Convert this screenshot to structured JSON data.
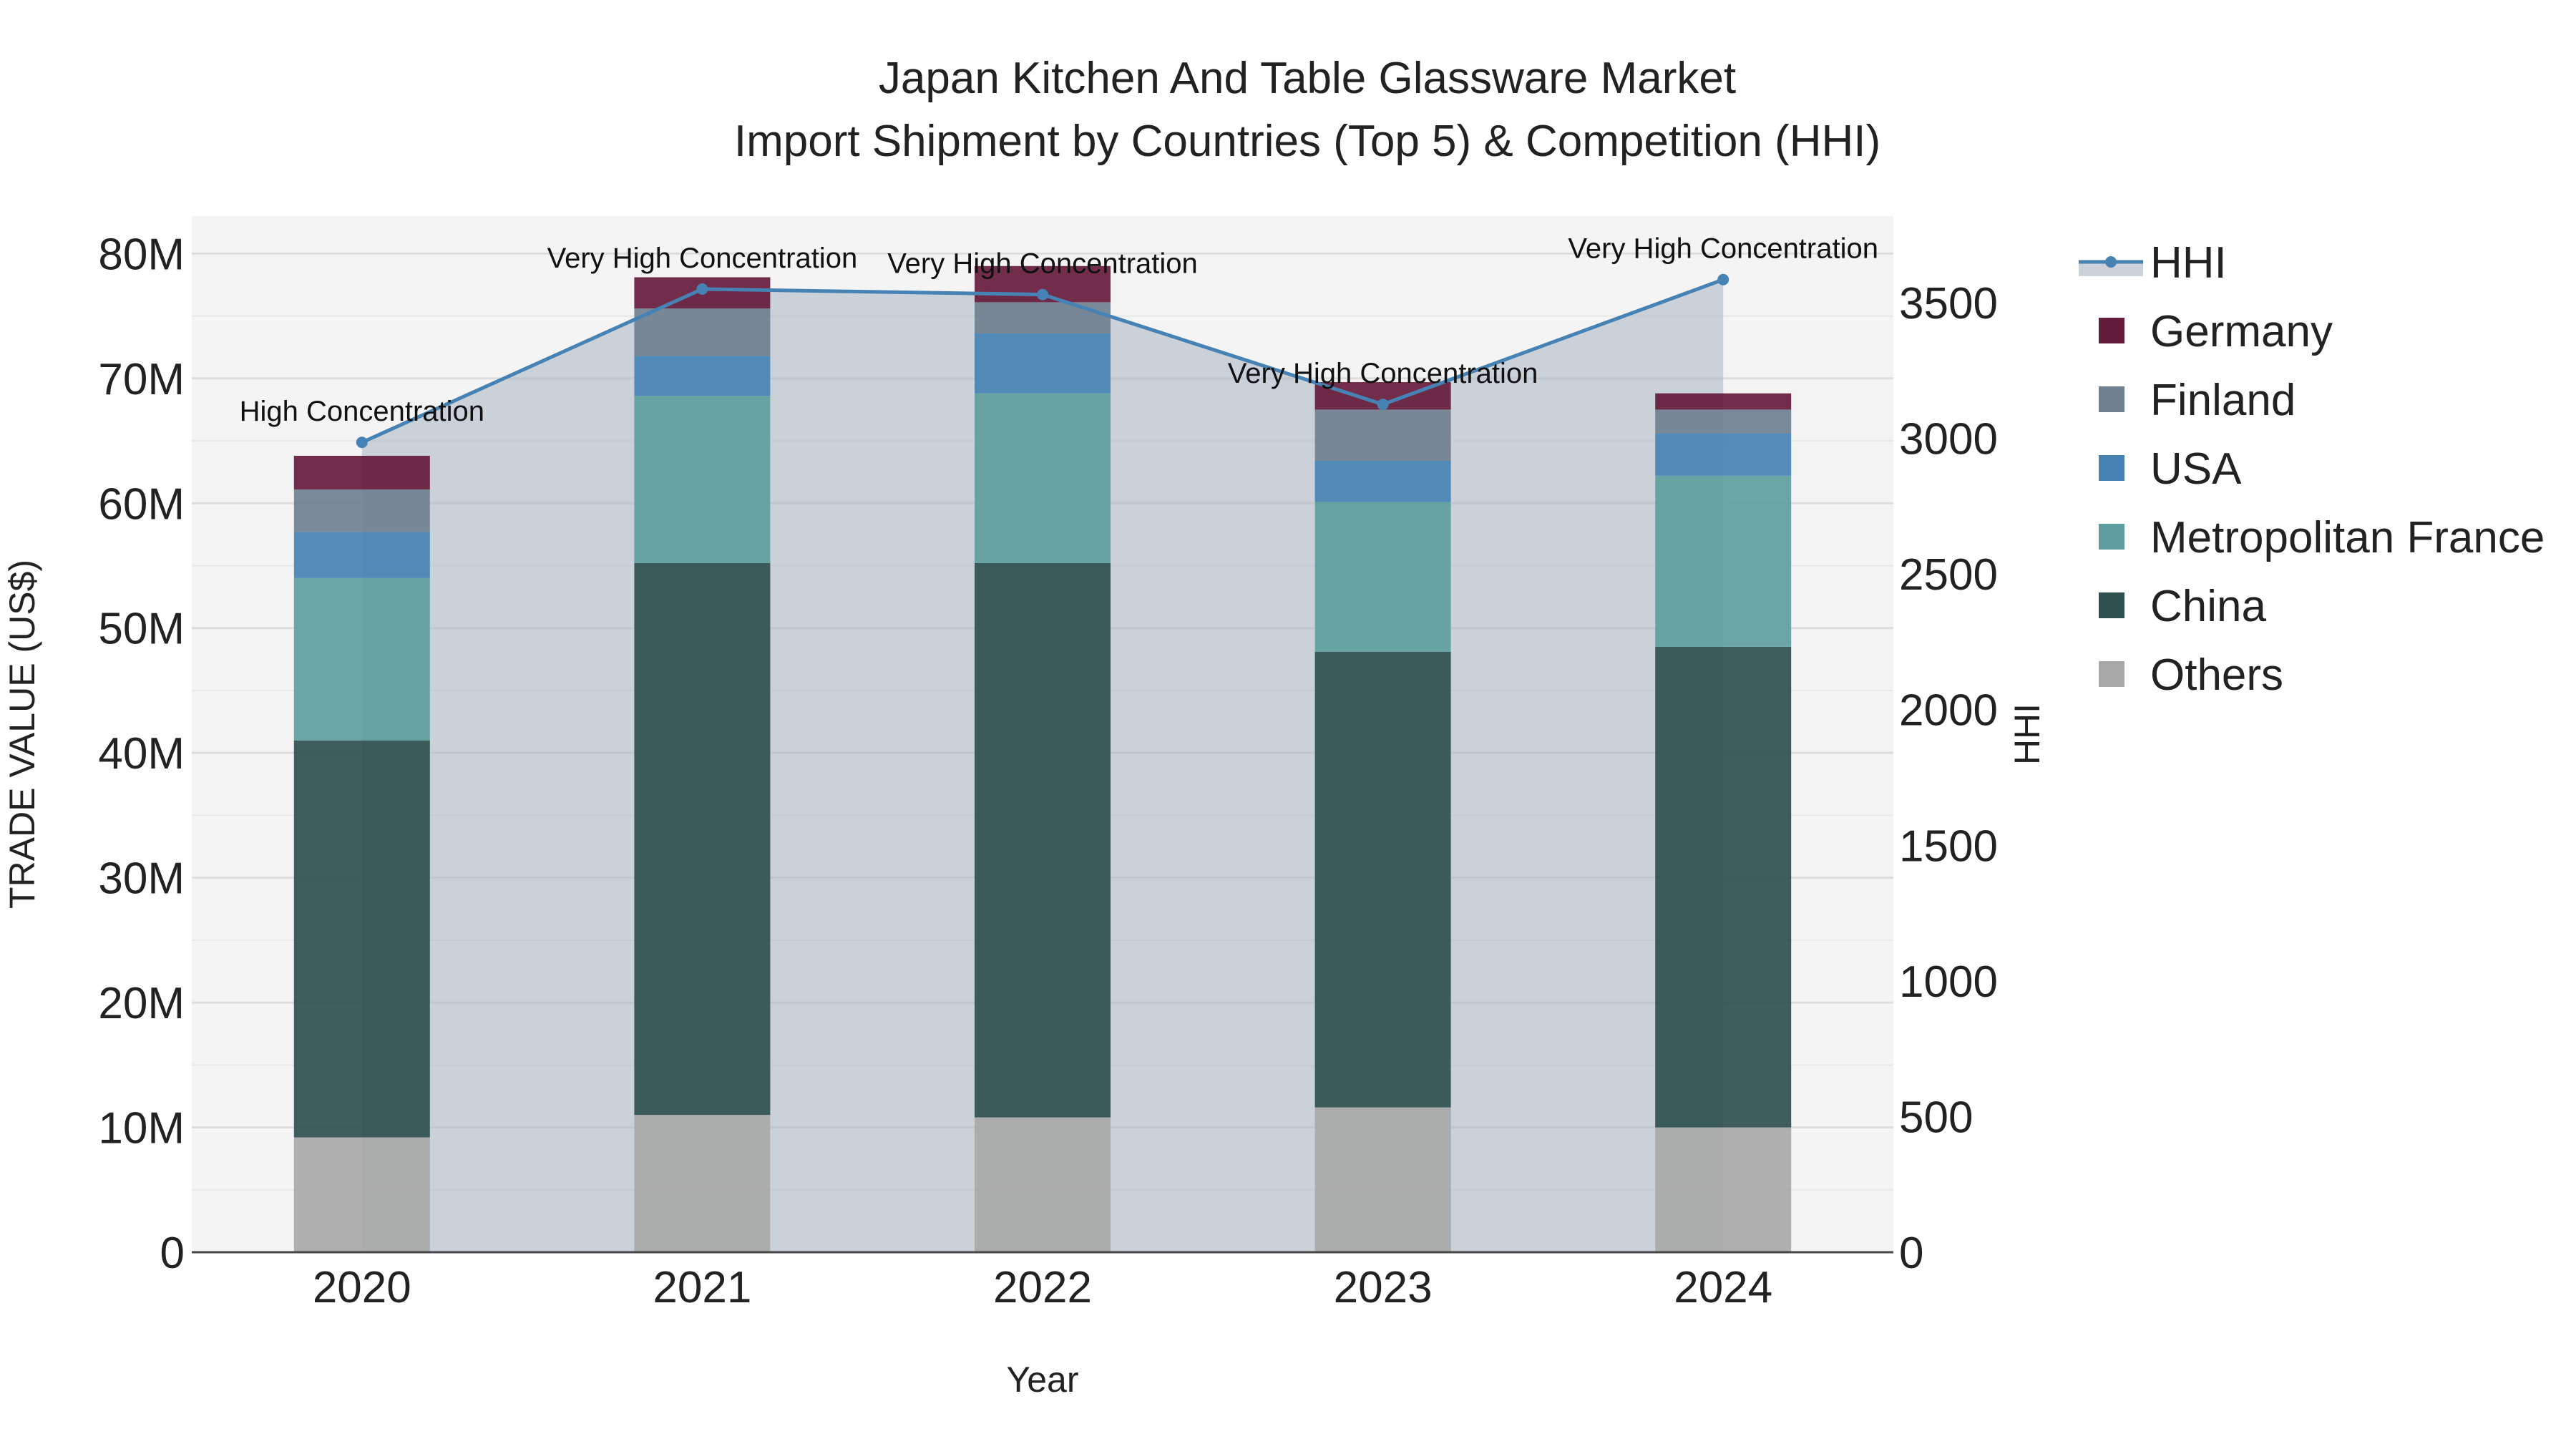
{
  "chart_data": {
    "type": "bar",
    "title_line1": "Japan Kitchen And Table Glassware Market",
    "title_line2": "Import Shipment by Countries (Top 5) & Competition (HHI)",
    "xlabel": "Year",
    "ylabel": "TRADE VALUE (US$)",
    "y2label": "HHI",
    "categories": [
      "2020",
      "2021",
      "2022",
      "2023",
      "2024"
    ],
    "ylim": [
      0,
      83000000
    ],
    "y2lim": [
      0,
      3819
    ],
    "y_ticks": [
      0,
      10000000,
      20000000,
      30000000,
      40000000,
      50000000,
      60000000,
      70000000,
      80000000
    ],
    "y_tick_labels": [
      "0",
      "10M",
      "20M",
      "30M",
      "40M",
      "50M",
      "60M",
      "70M",
      "80M"
    ],
    "y2_ticks": [
      0,
      500,
      1000,
      1500,
      2000,
      2500,
      3000,
      3500
    ],
    "y2_tick_labels": [
      "0",
      "500",
      "1000",
      "1500",
      "2000",
      "2500",
      "3000",
      "3500"
    ],
    "series": [
      {
        "name": "Others",
        "color": "#a8a8a8",
        "values": [
          9200000,
          11000000,
          10800000,
          11600000,
          10000000
        ]
      },
      {
        "name": "China",
        "color": "#2f4f4f",
        "values": [
          31800000,
          44200000,
          44400000,
          36500000,
          38500000
        ]
      },
      {
        "name": "Metropolitan France",
        "color": "#5f9ea0",
        "values": [
          13000000,
          13400000,
          13600000,
          12000000,
          13700000
        ]
      },
      {
        "name": "USA",
        "color": "#4682b4",
        "values": [
          3700000,
          3200000,
          4800000,
          3300000,
          3400000
        ]
      },
      {
        "name": "Finland",
        "color": "#708090",
        "values": [
          3400000,
          3800000,
          2500000,
          4100000,
          1900000
        ]
      },
      {
        "name": "Germany",
        "color": "#651b3a",
        "values": [
          2700000,
          2500000,
          2900000,
          2200000,
          1300000
        ]
      }
    ],
    "hhi": {
      "name": "HHI",
      "color": "#4682b4",
      "values": [
        2985,
        3550,
        3530,
        3125,
        3585
      ],
      "labels": [
        "High Concentration",
        "Very High Concentration",
        "Very High Concentration",
        "Very High Concentration",
        "Very High Concentration"
      ]
    },
    "legend": [
      {
        "name": "HHI",
        "kind": "line",
        "color": "#4682b4"
      },
      {
        "name": "Germany",
        "kind": "box",
        "color": "#651b3a"
      },
      {
        "name": "Finland",
        "kind": "box",
        "color": "#708090"
      },
      {
        "name": "USA",
        "kind": "box",
        "color": "#4682b4"
      },
      {
        "name": "Metropolitan France",
        "kind": "box",
        "color": "#5f9ea0"
      },
      {
        "name": "China",
        "kind": "box",
        "color": "#2f4f4f"
      },
      {
        "name": "Others",
        "kind": "box",
        "color": "#a8a8a8"
      }
    ]
  }
}
